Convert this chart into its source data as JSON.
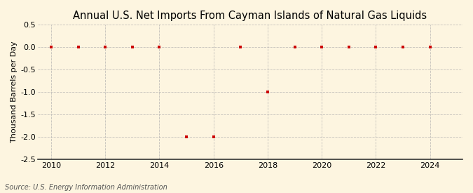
{
  "title": "Annual U.S. Net Imports From Cayman Islands of Natural Gas Liquids",
  "ylabel": "Thousand Barrels per Day",
  "source": "Source: U.S. Energy Information Administration",
  "years": [
    2010,
    2011,
    2012,
    2013,
    2014,
    2015,
    2016,
    2017,
    2018,
    2019,
    2020,
    2021,
    2022,
    2023,
    2024
  ],
  "values": [
    0,
    0,
    0,
    0,
    0,
    -2.0,
    -2.0,
    0,
    -1.0,
    0,
    0,
    0,
    0,
    0,
    0
  ],
  "xlim": [
    2009.5,
    2025.2
  ],
  "ylim": [
    -2.5,
    0.5
  ],
  "yticks": [
    0.5,
    0.0,
    -0.5,
    -1.0,
    -1.5,
    -2.0,
    -2.5
  ],
  "xticks": [
    2010,
    2012,
    2014,
    2016,
    2018,
    2020,
    2022,
    2024
  ],
  "marker_color": "#cc0000",
  "marker": "s",
  "marker_size": 3.5,
  "background_color": "#fdf5e0",
  "grid_color": "#aaaaaa",
  "title_fontsize": 10.5,
  "axis_fontsize": 8,
  "label_fontsize": 8,
  "source_fontsize": 7
}
